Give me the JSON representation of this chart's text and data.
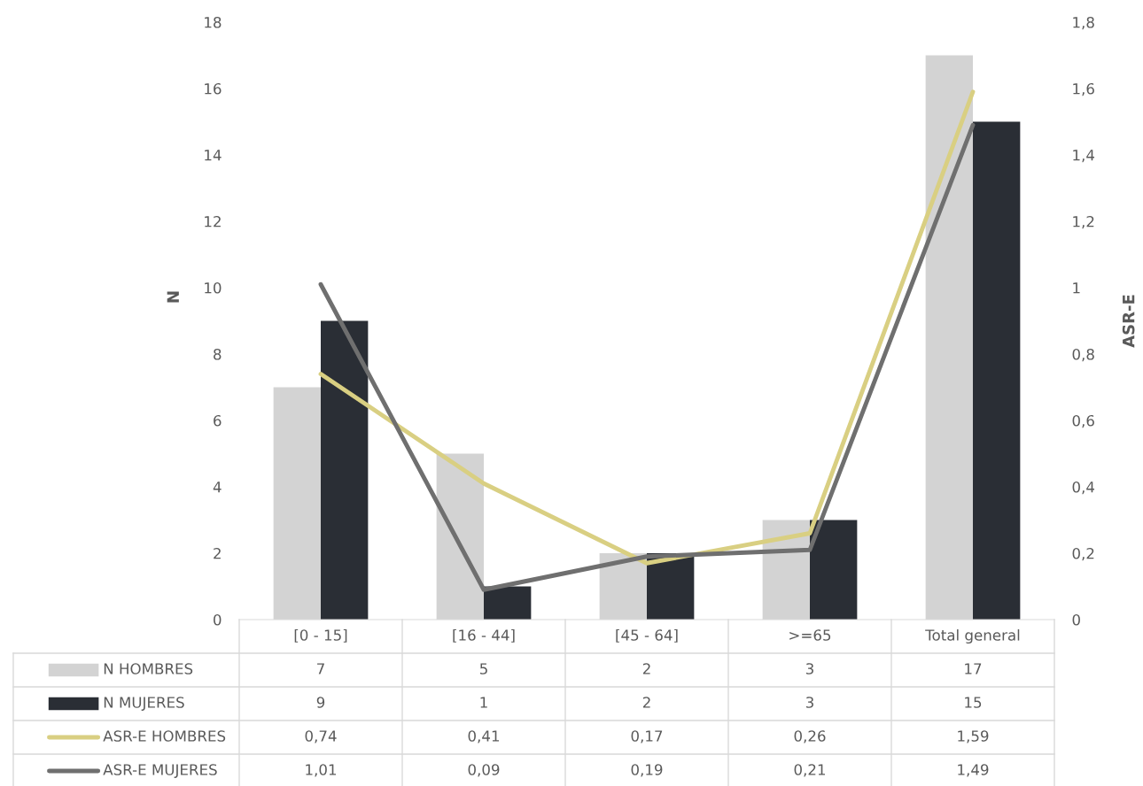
{
  "chart_data": {
    "type": "bar",
    "categories": [
      "[0 - 15]",
      "[16 - 44]",
      "[45 - 64]",
      ">=65",
      "Total general"
    ],
    "series": [
      {
        "name": "N HOMBRES",
        "color": "#d3d3d3",
        "values": [
          7,
          5,
          2,
          3,
          17
        ],
        "value_labels": [
          "7",
          "5",
          "2",
          "3",
          "17"
        ]
      },
      {
        "name": "N MUJERES",
        "color": "#2a2e35",
        "values": [
          9,
          1,
          2,
          3,
          15
        ],
        "value_labels": [
          "9",
          "1",
          "2",
          "3",
          "15"
        ]
      },
      {
        "name": "ASR-E HOMBRES",
        "type": "line",
        "axis": "y2",
        "color": "#d9cf82",
        "values": [
          0.74,
          0.41,
          0.17,
          0.26,
          1.59
        ],
        "value_labels": [
          "0,74",
          "0,41",
          "0,17",
          "0,26",
          "1,59"
        ]
      },
      {
        "name": "ASR-E MUJERES",
        "type": "line",
        "axis": "y2",
        "color": "#6f6f6f",
        "values": [
          1.01,
          0.09,
          0.19,
          0.21,
          1.49
        ],
        "value_labels": [
          "1,01",
          "0,09",
          "0,19",
          "0,21",
          "1,49"
        ]
      }
    ],
    "ylabel": "N",
    "y2label": "ASR-E",
    "ylim": [
      0,
      18
    ],
    "yticks": [
      0,
      2,
      4,
      6,
      8,
      10,
      12,
      14,
      16,
      18
    ],
    "y2lim": [
      0,
      1.8
    ],
    "y2ticks": [
      0,
      {
        "value": 0.2,
        "label": "0,2"
      },
      {
        "value": 0.4,
        "label": "0,4"
      },
      {
        "value": 0.6,
        "label": "0,6"
      },
      {
        "value": 0.8,
        "label": "0,8"
      },
      1,
      {
        "value": 1.2,
        "label": "1,2"
      },
      {
        "value": 1.4,
        "label": "1,4"
      },
      {
        "value": 1.6,
        "label": "1,6"
      },
      {
        "value": 1.8,
        "label": "1,8"
      }
    ],
    "legend": "bottom",
    "grid": false
  }
}
